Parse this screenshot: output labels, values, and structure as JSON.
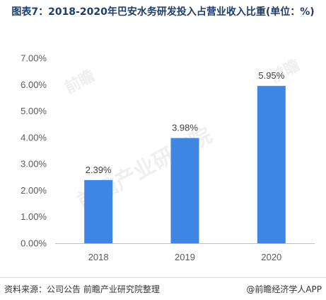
{
  "title": "图表7：2018-2020年巴安水务研发投入占营业收入比重(单位：%)",
  "source": "资料来源：公司公告 前瞻产业研究院整理",
  "brand": "@前瞻经济学人APP",
  "watermarks": [
    "前瞻产业研究院",
    "前瞻",
    "前瞻"
  ],
  "colors": {
    "bar": "#3f86e2",
    "axis": "#bfbfbf",
    "title": "#1f3c6b"
  },
  "chart_data": {
    "type": "bar",
    "categories": [
      "2018",
      "2019",
      "2020"
    ],
    "values": [
      2.39,
      3.98,
      5.95
    ],
    "data_labels": [
      "2.39%",
      "3.98%",
      "5.95%"
    ],
    "yticks": [
      "0.00%",
      "1.00%",
      "2.00%",
      "3.00%",
      "4.00%",
      "5.00%",
      "6.00%",
      "7.00%"
    ],
    "ylim": [
      0,
      7
    ],
    "grid": false,
    "legend": "none"
  }
}
